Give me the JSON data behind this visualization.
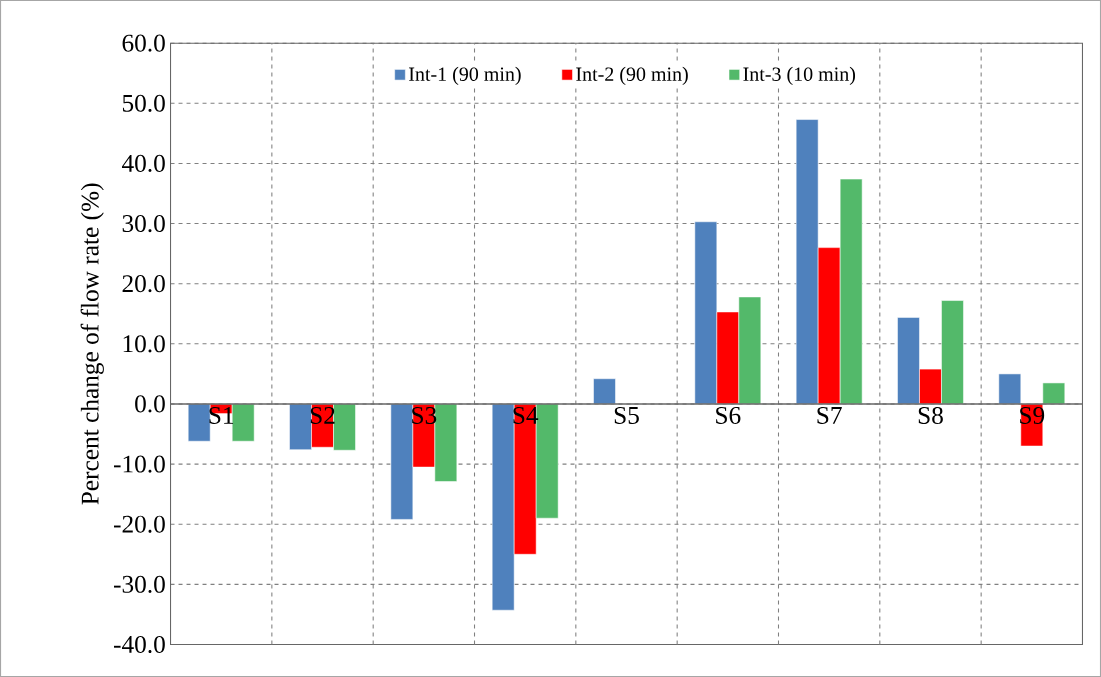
{
  "chart_data": {
    "type": "bar",
    "ylabel": "Percent change of flow rate (%)",
    "categories": [
      "S1",
      "S2",
      "S3",
      "S4",
      "S5",
      "S6",
      "S7",
      "S8",
      "S9"
    ],
    "series": [
      {
        "name": "Int-1 (90 min)",
        "color": "#4f81bd",
        "values": [
          -6.2,
          -7.6,
          -19.2,
          -34.3,
          4.2,
          30.3,
          47.3,
          14.4,
          5.0
        ]
      },
      {
        "name": "Int-2 (90 min)",
        "color": "#ff0000",
        "values": [
          -1.6,
          -7.2,
          -10.5,
          -25.0,
          null,
          15.3,
          26.0,
          5.8,
          -7.0
        ]
      },
      {
        "name": "Int-3 (10 min)",
        "color": "#53b96a",
        "values": [
          -6.2,
          -7.7,
          -12.9,
          -19.0,
          null,
          17.8,
          37.4,
          17.2,
          3.5
        ]
      }
    ],
    "ylim": [
      -40,
      60
    ],
    "yticks": [
      {
        "value": -40,
        "label": "-40.0"
      },
      {
        "value": -30,
        "label": "-30.0"
      },
      {
        "value": -20,
        "label": "-20.0"
      },
      {
        "value": -10,
        "label": "-10.0"
      },
      {
        "value": 0,
        "label": "0.0"
      },
      {
        "value": 10,
        "label": "10.0"
      },
      {
        "value": 20,
        "label": "20.0"
      },
      {
        "value": 30,
        "label": "30.0"
      },
      {
        "value": 40,
        "label": "40.0"
      },
      {
        "value": 50,
        "label": "50.0"
      },
      {
        "value": 60,
        "label": "60.0"
      }
    ],
    "grid": true,
    "legend": "top"
  }
}
